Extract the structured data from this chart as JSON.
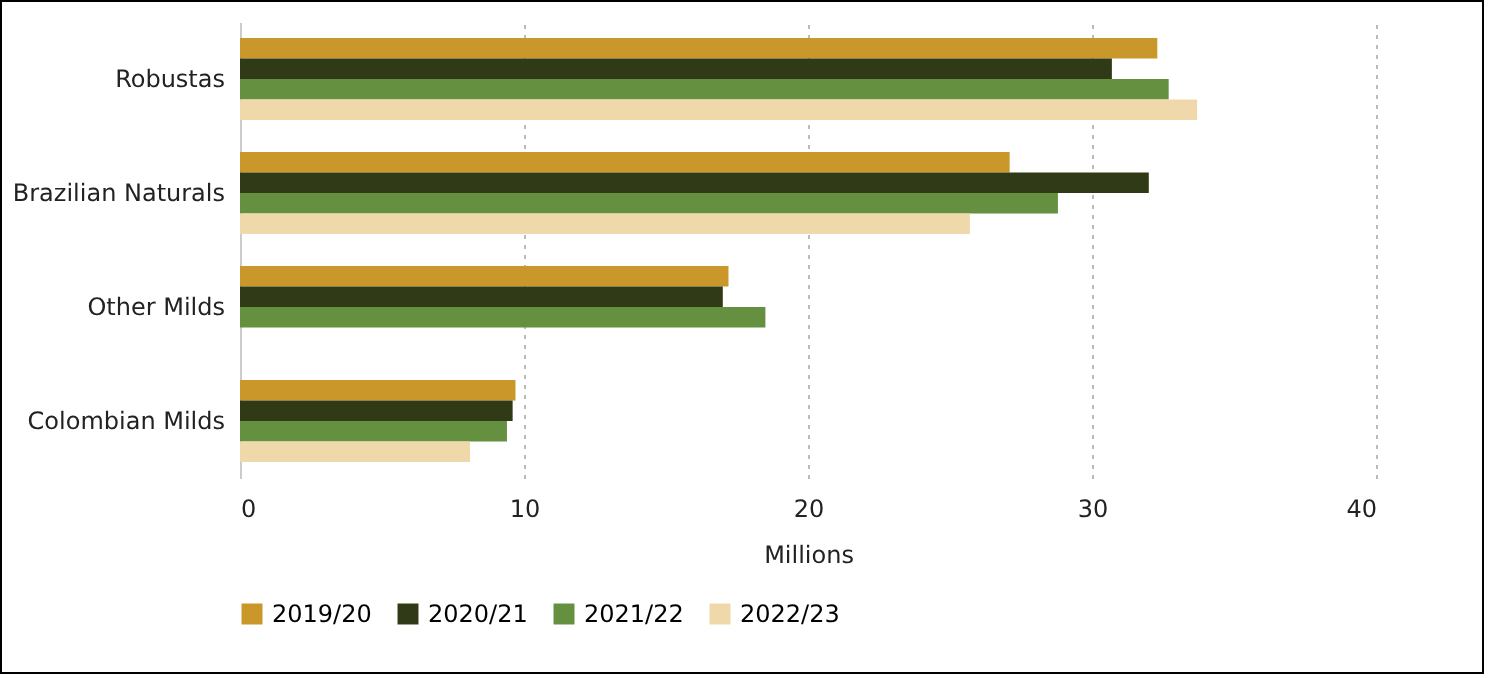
{
  "chart_data": {
    "type": "bar",
    "orientation": "horizontal",
    "xlabel": "Millions",
    "categories": [
      "Robustas",
      "Brazilian Naturals",
      "Other Milds",
      "Colombian Milds"
    ],
    "series": [
      {
        "name": "2019/20",
        "color": "#c9972a",
        "values": [
          32.3,
          27.1,
          17.2,
          9.7
        ]
      },
      {
        "name": "2020/21",
        "color": "#313a17",
        "values": [
          30.7,
          32.0,
          17.0,
          9.6
        ]
      },
      {
        "name": "2021/22",
        "color": "#64903f",
        "values": [
          32.7,
          28.8,
          18.5,
          9.4
        ]
      },
      {
        "name": "2022/23",
        "color": "#efd9aa",
        "values": [
          33.7,
          25.7,
          null,
          8.1
        ]
      }
    ],
    "xlim": [
      0,
      40
    ],
    "xticks": [
      0,
      10,
      20,
      30,
      40
    ],
    "grid": "x",
    "legend": "bottom"
  }
}
